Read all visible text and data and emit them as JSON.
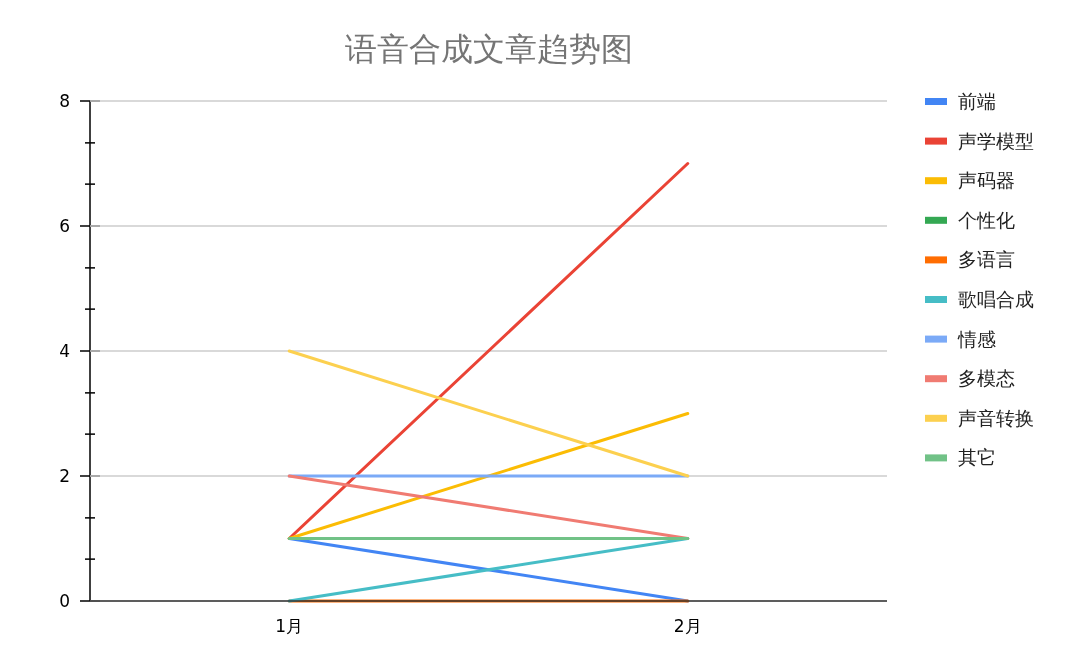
{
  "chart_data": {
    "type": "line",
    "title": "语音合成文章趋势图",
    "categories": [
      "1月",
      "2月"
    ],
    "series": [
      {
        "name": "前端",
        "color": "#4285f4",
        "values": [
          1,
          0
        ]
      },
      {
        "name": "声学模型",
        "color": "#ea4335",
        "values": [
          1,
          7
        ]
      },
      {
        "name": "声码器",
        "color": "#fbbc04",
        "values": [
          1,
          3
        ]
      },
      {
        "name": "个性化",
        "color": "#34a853",
        "values": [
          null,
          null
        ]
      },
      {
        "name": "多语言",
        "color": "#ff6d01",
        "values": [
          0,
          0
        ]
      },
      {
        "name": "歌唱合成",
        "color": "#46bdc6",
        "values": [
          0,
          1
        ]
      },
      {
        "name": "情感",
        "color": "#7baaf7",
        "values": [
          2,
          2
        ]
      },
      {
        "name": "多模态",
        "color": "#f07b72",
        "values": [
          2,
          1
        ]
      },
      {
        "name": "声音转换",
        "color": "#fcd04f",
        "values": [
          4,
          2
        ]
      },
      {
        "name": "其它",
        "color": "#71c287",
        "values": [
          1,
          1
        ]
      }
    ],
    "ylim": [
      0,
      8
    ],
    "yticks": [
      0,
      {
        "value": 0.67,
        "label": null
      },
      {
        "value": 1.33,
        "label": null
      },
      2,
      {
        "value": 2.67,
        "label": null
      },
      {
        "value": 3.33,
        "label": null
      },
      4,
      {
        "value": 4.67,
        "label": null
      },
      {
        "value": 5.33,
        "label": null
      },
      6,
      {
        "value": 6.67,
        "label": null
      },
      {
        "value": 7.33,
        "label": null
      },
      8
    ],
    "grid": "y",
    "legend": "right",
    "marker": "none",
    "line_style": "solid"
  }
}
